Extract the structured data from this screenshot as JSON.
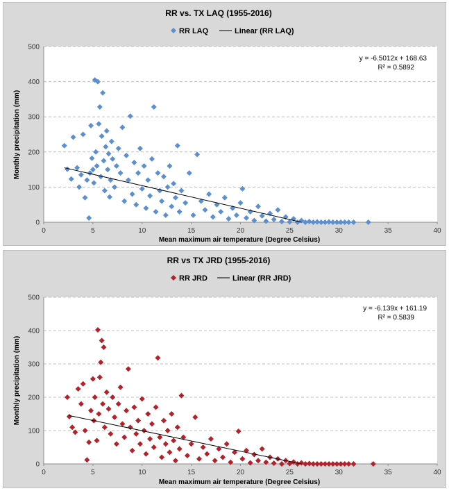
{
  "chart_data": [
    {
      "type": "scatter",
      "title": "RR vs. TX LAQ (1955-2016)",
      "xlabel": "Mean maximum air temperature (Degree Celsius)",
      "ylabel": "Monthly precipitation (mm)",
      "xlim": [
        0,
        40
      ],
      "ylim": [
        0,
        500
      ],
      "xticks": [
        "0",
        "5",
        "10",
        "15",
        "20",
        "25",
        "30",
        "35",
        "40"
      ],
      "yticks": [
        "0",
        "100",
        "200",
        "300",
        "400",
        "500"
      ],
      "grid": "horizontal dashed",
      "legend_position": "top-center",
      "series": [
        {
          "name": "RR LAQ",
          "marker": "diamond",
          "color": "#5b8fd0",
          "points": [
            [
              2.1,
              218
            ],
            [
              2.4,
              151
            ],
            [
              2.8,
              123
            ],
            [
              3.0,
              242
            ],
            [
              3.4,
              155
            ],
            [
              3.6,
              100
            ],
            [
              3.8,
              135
            ],
            [
              4.0,
              250
            ],
            [
              4.2,
              70
            ],
            [
              4.4,
              120
            ],
            [
              4.6,
              12
            ],
            [
              4.7,
              140
            ],
            [
              4.8,
              275
            ],
            [
              4.9,
              182
            ],
            [
              5.0,
              150
            ],
            [
              5.1,
              112
            ],
            [
              5.2,
              405
            ],
            [
              5.3,
              200
            ],
            [
              5.4,
              160
            ],
            [
              5.5,
              400
            ],
            [
              5.6,
              280
            ],
            [
              5.7,
              328
            ],
            [
              5.8,
              130
            ],
            [
              5.9,
              245
            ],
            [
              6.0,
              368
            ],
            [
              6.1,
              175
            ],
            [
              6.2,
              90
            ],
            [
              6.3,
              215
            ],
            [
              6.4,
              260
            ],
            [
              6.5,
              150
            ],
            [
              6.6,
              195
            ],
            [
              6.7,
              72
            ],
            [
              6.8,
              120
            ],
            [
              6.9,
              230
            ],
            [
              7.0,
              180
            ],
            [
              7.2,
              100
            ],
            [
              7.4,
              160
            ],
            [
              7.6,
              210
            ],
            [
              7.8,
              140
            ],
            [
              8.0,
              270
            ],
            [
              8.2,
              60
            ],
            [
              8.4,
              190
            ],
            [
              8.6,
              120
            ],
            [
              8.8,
              302
            ],
            [
              9.0,
              80
            ],
            [
              9.2,
              170
            ],
            [
              9.4,
              50
            ],
            [
              9.6,
              140
            ],
            [
              9.8,
              210
            ],
            [
              10.0,
              95
            ],
            [
              10.2,
              160
            ],
            [
              10.4,
              40
            ],
            [
              10.6,
              120
            ],
            [
              10.8,
              75
            ],
            [
              11.0,
              180
            ],
            [
              11.2,
              328
            ],
            [
              11.4,
              30
            ],
            [
              11.6,
              140
            ],
            [
              11.8,
              90
            ],
            [
              12.0,
              60
            ],
            [
              12.2,
              130
            ],
            [
              12.4,
              20
            ],
            [
              12.6,
              100
            ],
            [
              12.8,
              160
            ],
            [
              13.0,
              45
            ],
            [
              13.2,
              110
            ],
            [
              13.4,
              70
            ],
            [
              13.6,
              218
            ],
            [
              13.8,
              30
            ],
            [
              14.0,
              90
            ],
            [
              14.4,
              55
            ],
            [
              14.8,
              140
            ],
            [
              15.2,
              20
            ],
            [
              15.6,
              193
            ],
            [
              16.0,
              60
            ],
            [
              16.4,
              35
            ],
            [
              16.8,
              80
            ],
            [
              17.2,
              15
            ],
            [
              17.6,
              50
            ],
            [
              18.0,
              30
            ],
            [
              18.4,
              70
            ],
            [
              18.8,
              10
            ],
            [
              19.2,
              40
            ],
            [
              19.6,
              20
            ],
            [
              20.0,
              55
            ],
            [
              20.2,
              95
            ],
            [
              20.6,
              12
            ],
            [
              21.0,
              30
            ],
            [
              21.4,
              5
            ],
            [
              21.8,
              45
            ],
            [
              22.2,
              18
            ],
            [
              22.6,
              3
            ],
            [
              23.0,
              25
            ],
            [
              23.4,
              8
            ],
            [
              23.8,
              35
            ],
            [
              24.2,
              2
            ],
            [
              24.6,
              15
            ],
            [
              25.0,
              1
            ],
            [
              25.4,
              10
            ],
            [
              25.8,
              0
            ],
            [
              26.2,
              5
            ],
            [
              26.6,
              0
            ],
            [
              27.0,
              2
            ],
            [
              27.4,
              0
            ],
            [
              27.8,
              1
            ],
            [
              28.2,
              0
            ],
            [
              28.6,
              0
            ],
            [
              29.0,
              1
            ],
            [
              29.4,
              0
            ],
            [
              29.8,
              0
            ],
            [
              30.2,
              0
            ],
            [
              30.6,
              0
            ],
            [
              31.0,
              0
            ],
            [
              31.5,
              0
            ],
            [
              33.0,
              0
            ]
          ]
        },
        {
          "name": "Linear (RR LAQ)",
          "type": "line",
          "color": "#000000",
          "x": [
            2.1,
            26.2
          ],
          "y": [
            155,
            0
          ]
        }
      ],
      "annotations": [
        "y = -6.5012x + 168.63",
        "R² = 0.5892"
      ]
    },
    {
      "type": "scatter",
      "title": "RR vs TX JRD (1955-2016)",
      "xlabel": "Mean maximum air temperature (Degree Celsius)",
      "ylabel": "Monthly precipitation (mm)",
      "xlim": [
        0,
        40
      ],
      "ylim": [
        0,
        500
      ],
      "xticks": [
        "0",
        "5",
        "10",
        "15",
        "20",
        "25",
        "30",
        "35",
        "40"
      ],
      "yticks": [
        "0",
        "100",
        "200",
        "300",
        "400",
        "500"
      ],
      "grid": "horizontal dashed",
      "legend_position": "top-center",
      "series": [
        {
          "name": "RR JRD",
          "marker": "diamond",
          "color": "#b2222b",
          "points": [
            [
              2.4,
              200
            ],
            [
              2.6,
              142
            ],
            [
              2.9,
              110
            ],
            [
              3.2,
              95
            ],
            [
              3.5,
              225
            ],
            [
              3.8,
              180
            ],
            [
              4.0,
              240
            ],
            [
              4.2,
              100
            ],
            [
              4.4,
              12
            ],
            [
              4.6,
              65
            ],
            [
              4.8,
              160
            ],
            [
              5.0,
              255
            ],
            [
              5.1,
              130
            ],
            [
              5.2,
              200
            ],
            [
              5.4,
              70
            ],
            [
              5.5,
              402
            ],
            [
              5.6,
              150
            ],
            [
              5.7,
              260
            ],
            [
              5.8,
              305
            ],
            [
              5.9,
              370
            ],
            [
              6.0,
              180
            ],
            [
              6.1,
              350
            ],
            [
              6.2,
              110
            ],
            [
              6.4,
              215
            ],
            [
              6.6,
              165
            ],
            [
              6.8,
              90
            ],
            [
              7.0,
              200
            ],
            [
              7.2,
              140
            ],
            [
              7.4,
              60
            ],
            [
              7.6,
              180
            ],
            [
              7.8,
              230
            ],
            [
              8.0,
              120
            ],
            [
              8.2,
              80
            ],
            [
              8.4,
              160
            ],
            [
              8.6,
              285
            ],
            [
              8.8,
              110
            ],
            [
              9.0,
              40
            ],
            [
              9.2,
              170
            ],
            [
              9.4,
              90
            ],
            [
              9.6,
              130
            ],
            [
              9.8,
              60
            ],
            [
              10.0,
              195
            ],
            [
              10.2,
              100
            ],
            [
              10.4,
              30
            ],
            [
              10.6,
              150
            ],
            [
              10.8,
              75
            ],
            [
              11.0,
              120
            ],
            [
              11.2,
              50
            ],
            [
              11.4,
              170
            ],
            [
              11.6,
              318
            ],
            [
              11.8,
              80
            ],
            [
              12.0,
              20
            ],
            [
              12.2,
              130
            ],
            [
              12.4,
              60
            ],
            [
              12.6,
              100
            ],
            [
              12.8,
              35
            ],
            [
              13.0,
              150
            ],
            [
              13.2,
              70
            ],
            [
              13.4,
              10
            ],
            [
              13.6,
              110
            ],
            [
              13.8,
              45
            ],
            [
              14.0,
              205
            ],
            [
              14.2,
              80
            ],
            [
              14.6,
              25
            ],
            [
              15.0,
              60
            ],
            [
              15.4,
              140
            ],
            [
              15.8,
              15
            ],
            [
              16.2,
              50
            ],
            [
              16.6,
              30
            ],
            [
              17.0,
              75
            ],
            [
              17.4,
              10
            ],
            [
              17.8,
              45
            ],
            [
              18.2,
              20
            ],
            [
              18.6,
              60
            ],
            [
              19.0,
              5
            ],
            [
              19.4,
              35
            ],
            [
              19.8,
              98
            ],
            [
              20.2,
              15
            ],
            [
              20.6,
              40
            ],
            [
              21.0,
              3
            ],
            [
              21.4,
              28
            ],
            [
              21.8,
              10
            ],
            [
              22.2,
              45
            ],
            [
              22.6,
              5
            ],
            [
              23.0,
              20
            ],
            [
              23.4,
              2
            ],
            [
              23.8,
              15
            ],
            [
              24.2,
              0
            ],
            [
              24.6,
              10
            ],
            [
              25.0,
              1
            ],
            [
              25.4,
              6
            ],
            [
              25.8,
              0
            ],
            [
              26.2,
              3
            ],
            [
              26.6,
              0
            ],
            [
              27.0,
              1
            ],
            [
              27.4,
              0
            ],
            [
              27.8,
              0
            ],
            [
              28.2,
              0
            ],
            [
              28.6,
              0
            ],
            [
              29.0,
              0
            ],
            [
              29.4,
              0
            ],
            [
              29.8,
              0
            ],
            [
              30.2,
              0
            ],
            [
              30.6,
              0
            ],
            [
              31.0,
              0
            ],
            [
              31.5,
              0
            ],
            [
              33.5,
              0
            ]
          ]
        },
        {
          "name": "Linear (RR JRD)",
          "type": "line",
          "color": "#000000",
          "x": [
            2.6,
            26.2
          ],
          "y": [
            145,
            0
          ]
        }
      ],
      "annotations": [
        "y = -6.139x + 161.19",
        "R² = 0.5839"
      ]
    }
  ]
}
